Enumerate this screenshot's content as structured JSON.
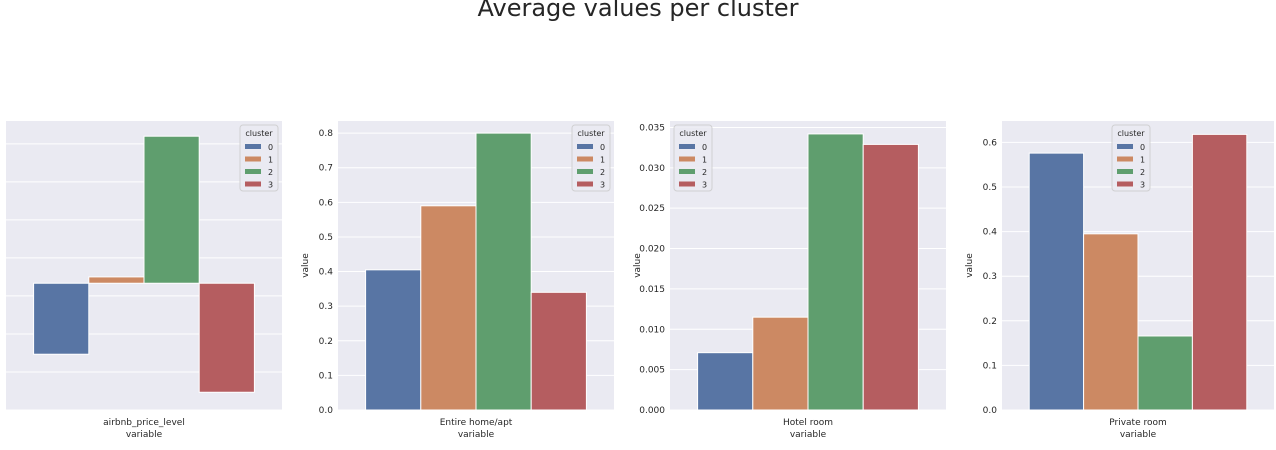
{
  "title": "Average values per cluster",
  "palette": {
    "background": "#eaeaf2",
    "grid": "#ffffff",
    "cluster_colors": [
      "#5875a4",
      "#cc8963",
      "#5f9e6e",
      "#b55d60"
    ]
  },
  "legend": {
    "title": "cluster",
    "labels": [
      "0",
      "1",
      "2",
      "3"
    ]
  },
  "chart_data": [
    {
      "type": "bar",
      "title": "",
      "xlabel": "variable",
      "ylabel": "",
      "categories": [
        "airbnb_price_level"
      ],
      "series": [
        {
          "name": "0",
          "values": [
            -0.28
          ]
        },
        {
          "name": "1",
          "values": [
            0.025
          ]
        },
        {
          "name": "2",
          "values": [
            0.58
          ]
        },
        {
          "name": "3",
          "values": [
            -0.43
          ]
        }
      ],
      "ylim": [
        -0.5,
        0.64
      ],
      "yticks": [
        -0.5,
        -0.35,
        -0.2,
        -0.05,
        0.1,
        0.25,
        0.4,
        0.55
      ],
      "ytick_labels": [],
      "grid": true,
      "legend_position": "top-right"
    },
    {
      "type": "bar",
      "title": "",
      "xlabel": "variable",
      "ylabel": "value",
      "categories": [
        "Entire home/apt"
      ],
      "series": [
        {
          "name": "0",
          "values": [
            0.405
          ]
        },
        {
          "name": "1",
          "values": [
            0.59
          ]
        },
        {
          "name": "2",
          "values": [
            0.8
          ]
        },
        {
          "name": "3",
          "values": [
            0.34
          ]
        }
      ],
      "ylim": [
        0,
        0.835
      ],
      "yticks": [
        0,
        0.1,
        0.2,
        0.3,
        0.4,
        0.5,
        0.6,
        0.7,
        0.8
      ],
      "ytick_labels": [
        "0.0",
        "0.1",
        "0.2",
        "0.3",
        "0.4",
        "0.5",
        "0.6",
        "0.7",
        "0.8"
      ],
      "grid": true,
      "legend_position": "top-right"
    },
    {
      "type": "bar",
      "title": "",
      "xlabel": "variable",
      "ylabel": "value",
      "categories": [
        "Hotel room"
      ],
      "series": [
        {
          "name": "0",
          "values": [
            0.0071
          ]
        },
        {
          "name": "1",
          "values": [
            0.0115
          ]
        },
        {
          "name": "2",
          "values": [
            0.0342
          ]
        },
        {
          "name": "3",
          "values": [
            0.0329
          ]
        }
      ],
      "ylim": [
        0,
        0.0358
      ],
      "yticks": [
        0,
        0.005,
        0.01,
        0.015,
        0.02,
        0.025,
        0.03,
        0.035
      ],
      "ytick_labels": [
        "0.000",
        "0.005",
        "0.010",
        "0.015",
        "0.020",
        "0.025",
        "0.030",
        "0.035"
      ],
      "grid": true,
      "legend_position": "top-left"
    },
    {
      "type": "bar",
      "title": "",
      "xlabel": "variable",
      "ylabel": "value",
      "categories": [
        "Private room"
      ],
      "series": [
        {
          "name": "0",
          "values": [
            0.576
          ]
        },
        {
          "name": "1",
          "values": [
            0.395
          ]
        },
        {
          "name": "2",
          "values": [
            0.166
          ]
        },
        {
          "name": "3",
          "values": [
            0.618
          ]
        }
      ],
      "ylim": [
        0,
        0.648
      ],
      "yticks": [
        0,
        0.1,
        0.2,
        0.3,
        0.4,
        0.5,
        0.6
      ],
      "ytick_labels": [
        "0.0",
        "0.1",
        "0.2",
        "0.3",
        "0.4",
        "0.5",
        "0.6"
      ],
      "grid": true,
      "legend_position": "top-center"
    }
  ]
}
